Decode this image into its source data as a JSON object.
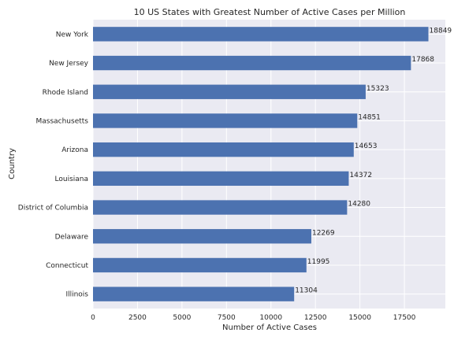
{
  "chart_data": {
    "type": "bar",
    "orientation": "horizontal",
    "title": "10 US States with Greatest Number of Active Cases per Million",
    "xlabel": "Number of Active Cases",
    "ylabel": "Country",
    "categories": [
      "New York",
      "New Jersey",
      "Rhode Island",
      "Massachusetts",
      "Arizona",
      "Louisiana",
      "District of Columbia",
      "Delaware",
      "Connecticut",
      "Illinois"
    ],
    "values": [
      18849,
      17868,
      15323,
      14851,
      14653,
      14372,
      14280,
      12269,
      11995,
      11304
    ],
    "xlim": [
      0,
      19800
    ],
    "xticks": [
      0,
      2500,
      5000,
      7500,
      10000,
      12500,
      15000,
      17500
    ],
    "grid": true,
    "bar_color": "#4c72b0",
    "background_color": "#eaeaf2"
  }
}
